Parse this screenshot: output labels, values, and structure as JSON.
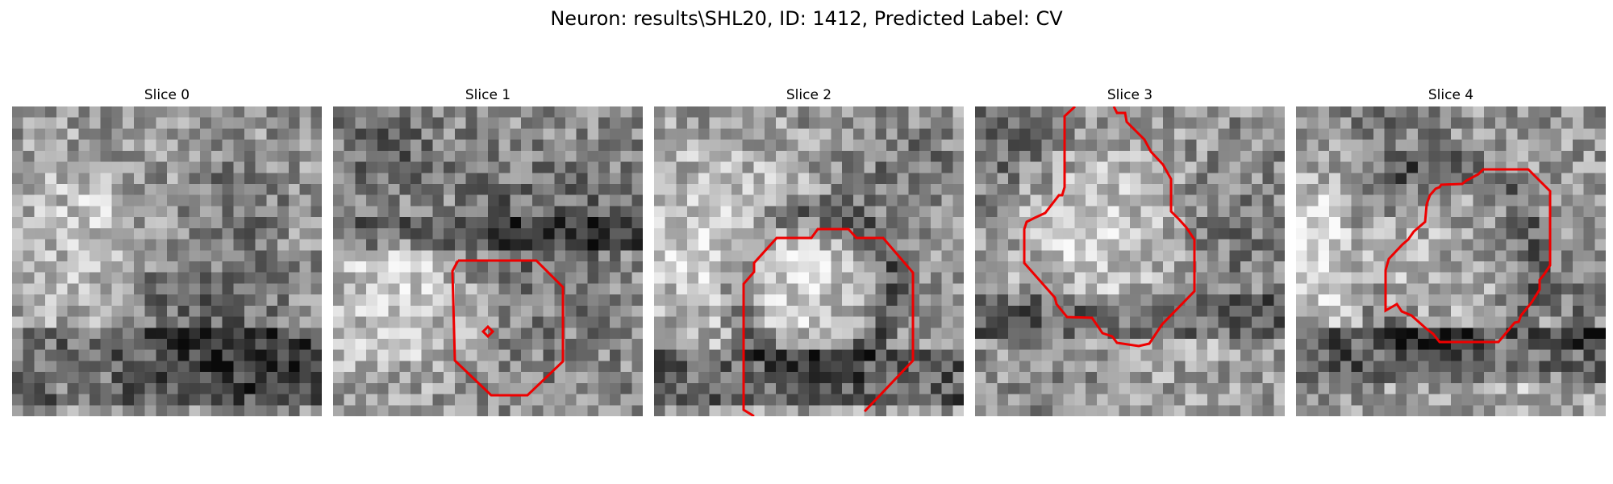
{
  "figure": {
    "title": "Neuron: results\\SHL20, ID: 1412, Predicted Label: CV",
    "contour_color": "#ee0000",
    "colormap": "gray",
    "panels": [
      {
        "title": "Slice 0",
        "has_contour": false
      },
      {
        "title": "Slice 1",
        "has_contour": true,
        "description": "octagonal red contour with a small diamond marker"
      },
      {
        "title": "Slice 2",
        "has_contour": true,
        "description": "octagonal red contour clipped at bottom edge"
      },
      {
        "title": "Slice 3",
        "has_contour": true,
        "description": "irregular red contour touching top edge"
      },
      {
        "title": "Slice 4",
        "has_contour": true,
        "description": "irregular octagonal red contour"
      }
    ]
  }
}
